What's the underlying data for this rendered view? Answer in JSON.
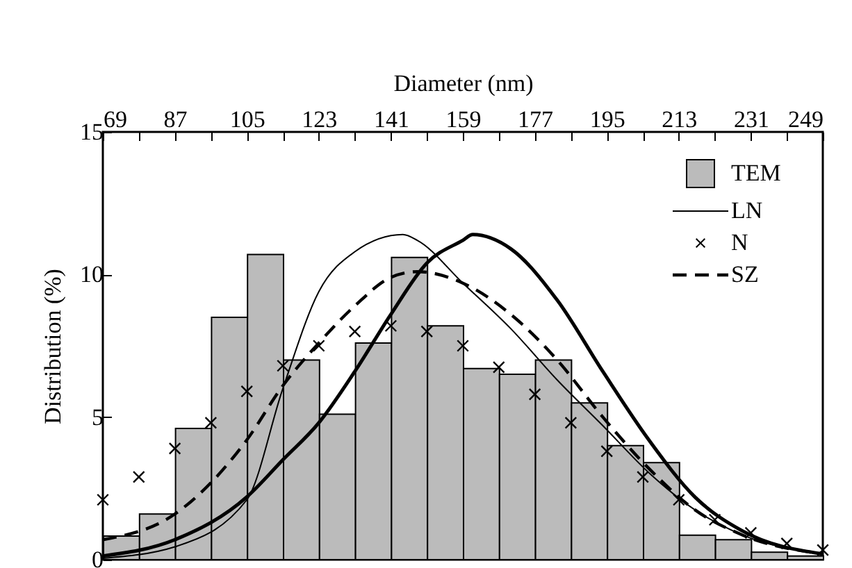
{
  "chart_data": {
    "type": "histogram",
    "xlabel": "Diameter (nm)",
    "ylabel": "Distribution (%)",
    "xlim": [
      69,
      249
    ],
    "xticks": [
      69,
      {
        "value": 78,
        "label": null
      },
      87,
      {
        "value": 96,
        "label": null
      },
      105,
      {
        "value": 114,
        "label": null
      },
      123,
      {
        "value": 132,
        "label": null
      },
      141,
      {
        "value": 150,
        "label": null
      },
      159,
      {
        "value": 168,
        "label": null
      },
      177,
      {
        "value": 186,
        "label": null
      },
      195,
      {
        "value": 204,
        "label": null
      },
      213,
      {
        "value": 222,
        "label": null
      },
      231,
      {
        "value": 240,
        "label": null
      },
      249
    ],
    "ylim": [
      0,
      15
    ],
    "yticks": [
      0,
      5,
      10,
      15
    ],
    "grid": false,
    "legend": "top right",
    "bins": [
      69,
      78,
      87,
      96,
      105,
      114,
      123,
      132,
      141,
      150,
      159,
      168,
      177,
      186,
      195,
      204,
      213,
      222,
      231,
      240,
      249
    ],
    "series": [
      {
        "name": "TEM",
        "color": "#bbbbbb",
        "values": [
          0.83,
          1.6,
          4.6,
          8.5,
          10.7,
          7.0,
          5.1,
          7.6,
          10.6,
          8.2,
          6.7,
          6.5,
          7.0,
          5.5,
          4.0,
          3.4,
          0.86,
          0.7,
          0.26,
          0.13
        ]
      },
      {
        "type": "line",
        "color": "#000000",
        "line_style": "solid",
        "x": [
          69,
          87,
          105,
          114,
          123,
          132,
          141,
          150,
          159,
          161.5,
          171,
          182.6,
          194,
          205.5,
          217,
          229,
          249
        ],
        "values": [
          0.13,
          0.7,
          2.2,
          3.5,
          4.8,
          6.6,
          8.6,
          10.4,
          11.2,
          11.4,
          10.9,
          9.1,
          6.6,
          4.2,
          2.2,
          1.0,
          0.2
        ]
      },
      {
        "name": "LN",
        "type": "line",
        "color": "#000000",
        "line_style": "solid",
        "x": [
          69,
          87,
          105,
          114,
          123,
          132,
          144,
          147.6,
          159,
          171,
          182.6,
          194,
          205.5,
          217,
          229,
          249
        ],
        "values": [
          0.05,
          0.45,
          2.1,
          6.0,
          9.4,
          10.8,
          11.4,
          11.2,
          9.7,
          8.1,
          6.3,
          4.7,
          3.05,
          1.75,
          0.86,
          0.2
        ]
      },
      {
        "name": "N",
        "type": "scatter",
        "color": "#000000",
        "marker": "cross",
        "x": [
          69,
          78,
          87,
          96,
          105,
          114,
          123,
          132,
          141,
          150,
          159,
          168,
          177,
          186,
          195,
          204,
          213,
          222,
          231,
          240,
          249
        ],
        "values": [
          2.1,
          2.9,
          3.9,
          4.8,
          5.9,
          6.8,
          7.5,
          8.0,
          8.2,
          8.0,
          7.5,
          6.75,
          5.8,
          4.8,
          3.8,
          2.9,
          2.1,
          1.4,
          0.94,
          0.57,
          0.34
        ]
      },
      {
        "name": "SZ",
        "type": "line",
        "color": "#000000",
        "line_style": "dashed",
        "x": [
          69,
          87,
          105,
          114,
          123,
          132,
          141,
          147.6,
          159,
          171,
          182.6,
          194,
          205.5,
          217,
          229,
          249
        ],
        "values": [
          0.7,
          1.6,
          4.2,
          6.1,
          7.6,
          8.9,
          9.9,
          10.1,
          9.7,
          8.6,
          7.0,
          5.0,
          3.2,
          1.75,
          0.86,
          0.2
        ]
      }
    ]
  }
}
